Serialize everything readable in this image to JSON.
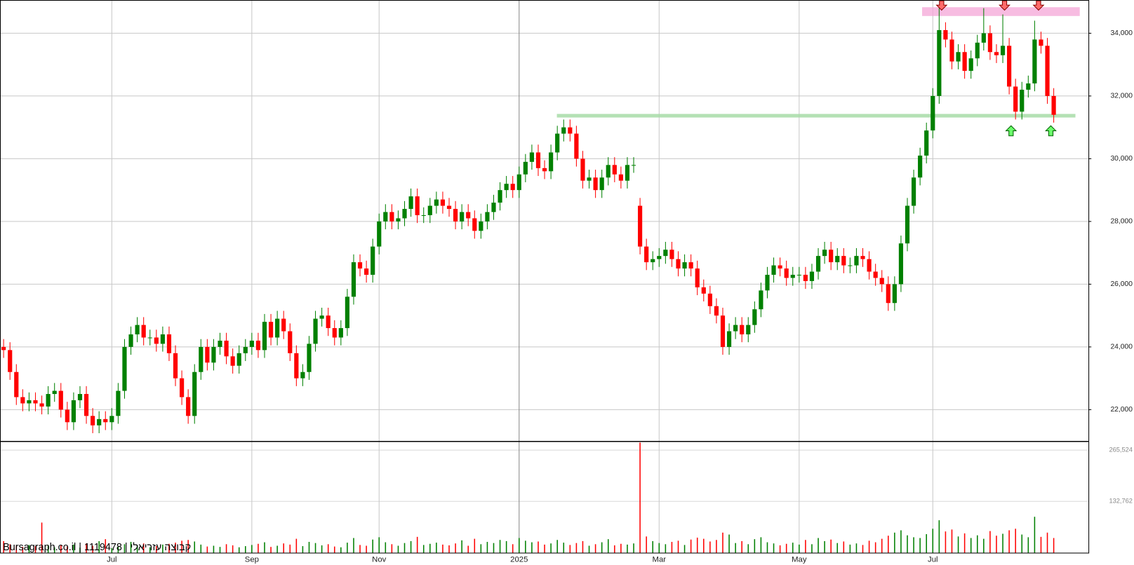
{
  "chart_data": {
    "type": "candlestick",
    "categories": [
      null,
      null,
      null,
      null,
      null,
      null,
      null,
      null,
      null,
      null,
      null,
      null,
      null,
      null,
      null,
      null,
      null,
      "Jul",
      null,
      null,
      null,
      null,
      null,
      null,
      null,
      null,
      null,
      null,
      null,
      null,
      null,
      null,
      null,
      null,
      null,
      null,
      null,
      null,
      null,
      "Sep",
      null,
      null,
      null,
      null,
      null,
      null,
      null,
      null,
      null,
      null,
      null,
      null,
      null,
      null,
      null,
      null,
      null,
      null,
      null,
      "Nov",
      null,
      null,
      null,
      null,
      null,
      null,
      null,
      null,
      null,
      null,
      null,
      null,
      null,
      null,
      null,
      null,
      null,
      null,
      null,
      null,
      null,
      "2025",
      null,
      null,
      null,
      null,
      null,
      null,
      null,
      null,
      null,
      null,
      null,
      null,
      null,
      null,
      null,
      null,
      null,
      null,
      null,
      null,
      null,
      "Mar",
      null,
      null,
      null,
      null,
      null,
      null,
      null,
      null,
      null,
      null,
      null,
      null,
      null,
      null,
      null,
      null,
      null,
      null,
      null,
      null,
      null,
      "May",
      null,
      null,
      null,
      null,
      null,
      null,
      null,
      null,
      null,
      null,
      null,
      null,
      null,
      null,
      null,
      null,
      null,
      null,
      null,
      null,
      "Jul",
      null,
      null,
      null,
      null,
      null,
      null,
      null,
      null,
      null,
      null,
      null,
      null,
      null,
      null,
      null,
      null,
      null,
      null,
      null
    ],
    "open": [
      24000,
      23900,
      23200,
      22400,
      22200,
      22300,
      22200,
      22100,
      22500,
      22600,
      22000,
      21600,
      22300,
      22500,
      21800,
      21500,
      21700,
      21600,
      21800,
      22600,
      24000,
      24400,
      24700,
      24300,
      24300,
      24100,
      24400,
      23800,
      23000,
      22400,
      21800,
      23200,
      24000,
      23500,
      24000,
      24200,
      23700,
      23400,
      23800,
      24000,
      24200,
      23900,
      24800,
      24300,
      24900,
      24500,
      23800,
      23000,
      23200,
      24100,
      24900,
      25000,
      24600,
      24300,
      24600,
      25600,
      26700,
      26500,
      26300,
      27200,
      28000,
      28300,
      28000,
      28100,
      28400,
      28800,
      28200,
      28200,
      28500,
      28700,
      28500,
      28400,
      28000,
      28300,
      28100,
      27700,
      28000,
      28300,
      28600,
      29000,
      29200,
      29000,
      29500,
      29900,
      30200,
      29700,
      29600,
      30200,
      30800,
      31000,
      30800,
      30000,
      29300,
      29400,
      29000,
      29400,
      29800,
      29500,
      29300,
      29800,
      28500,
      27200,
      26700,
      26800,
      26900,
      27100,
      26800,
      26500,
      26700,
      26500,
      25900,
      25700,
      25300,
      25000,
      24000,
      24500,
      24700,
      24400,
      24700,
      25200,
      25800,
      26300,
      26600,
      26500,
      26200,
      26300,
      26300,
      26100,
      26400,
      26900,
      27100,
      26700,
      26900,
      26600,
      26600,
      26900,
      26800,
      26400,
      26200,
      26000,
      25400,
      26000,
      27300,
      28500,
      29400,
      30100,
      30900,
      32000,
      34100,
      33800,
      33100,
      33400,
      32800,
      33200,
      33700,
      34000,
      33400,
      33300,
      33600,
      32300,
      31500,
      32200,
      32400,
      33800,
      33600,
      32000
    ],
    "high": [
      24250,
      24150,
      23450,
      22650,
      22550,
      22550,
      22450,
      22750,
      22850,
      22850,
      22250,
      22550,
      22750,
      22750,
      22050,
      21950,
      21950,
      22050,
      22850,
      24250,
      24650,
      24950,
      24950,
      24550,
      24550,
      24650,
      24650,
      24050,
      23250,
      22650,
      23450,
      24250,
      24250,
      24250,
      24450,
      24450,
      23950,
      24050,
      24250,
      24450,
      24450,
      25050,
      25050,
      25150,
      25150,
      24750,
      24050,
      23450,
      24350,
      25150,
      25250,
      25250,
      24850,
      24850,
      25850,
      26950,
      26950,
      26750,
      27450,
      28250,
      28550,
      28550,
      28350,
      28650,
      29050,
      29050,
      28450,
      28750,
      28950,
      28950,
      28750,
      28650,
      28550,
      28550,
      28350,
      28250,
      28550,
      28850,
      29250,
      29450,
      29450,
      29750,
      30150,
      30450,
      30450,
      29950,
      30450,
      31050,
      31250,
      31250,
      31050,
      30250,
      29650,
      29650,
      29650,
      30050,
      30050,
      29750,
      30050,
      30050,
      28750,
      27450,
      27050,
      27150,
      27350,
      27350,
      27050,
      26950,
      26950,
      26750,
      26150,
      25950,
      25550,
      25250,
      24750,
      24950,
      24950,
      24950,
      25450,
      26050,
      26550,
      26850,
      26850,
      26750,
      26550,
      26550,
      26550,
      26650,
      27150,
      27350,
      27350,
      27150,
      27150,
      26850,
      27150,
      27150,
      27050,
      26650,
      26450,
      26250,
      26250,
      27550,
      28750,
      29650,
      30350,
      31150,
      32250,
      34800,
      34350,
      34050,
      33650,
      33650,
      33450,
      33950,
      34800,
      34250,
      33650,
      34600,
      33850,
      32550,
      32450,
      32650,
      34400,
      34050,
      33850,
      32250
    ],
    "low": [
      23650,
      22950,
      22150,
      21950,
      21950,
      21950,
      21850,
      21850,
      22250,
      21750,
      21350,
      21350,
      22050,
      21550,
      21250,
      21250,
      21350,
      21350,
      21550,
      22350,
      23750,
      24150,
      24050,
      24050,
      23850,
      23850,
      23550,
      22750,
      22150,
      21550,
      21550,
      22950,
      23250,
      23250,
      23750,
      23450,
      23150,
      23150,
      23550,
      23750,
      23650,
      23650,
      24050,
      24050,
      24250,
      23550,
      22750,
      22750,
      22950,
      23850,
      24650,
      24350,
      24050,
      24050,
      24350,
      25350,
      26250,
      26050,
      26050,
      26950,
      27750,
      27750,
      27750,
      27850,
      28150,
      27950,
      27950,
      27950,
      28250,
      28250,
      28150,
      27750,
      27750,
      27850,
      27450,
      27450,
      27750,
      28050,
      28350,
      28750,
      28750,
      28750,
      29250,
      29650,
      29450,
      29350,
      29350,
      29950,
      30550,
      30550,
      29750,
      29050,
      29050,
      28750,
      28750,
      29150,
      29250,
      29050,
      29050,
      29550,
      26950,
      26450,
      26450,
      26550,
      26650,
      26550,
      26250,
      26250,
      26250,
      25650,
      25450,
      25050,
      24750,
      23750,
      23750,
      24250,
      24150,
      24150,
      24450,
      24950,
      25550,
      26050,
      26250,
      25950,
      25950,
      26050,
      25850,
      25850,
      26150,
      26650,
      26450,
      26450,
      26350,
      26350,
      26350,
      26550,
      26150,
      25950,
      25750,
      25150,
      25150,
      25750,
      27050,
      28250,
      29150,
      29850,
      30650,
      31750,
      33550,
      32850,
      32850,
      32550,
      32550,
      32950,
      33450,
      33150,
      33050,
      33050,
      32050,
      31250,
      31250,
      31950,
      32150,
      33350,
      31750,
      31150
    ],
    "close": [
      23900,
      23200,
      22400,
      22200,
      22300,
      22200,
      22100,
      22500,
      22600,
      22000,
      21600,
      22300,
      22500,
      21800,
      21500,
      21700,
      21600,
      21800,
      22600,
      24000,
      24400,
      24700,
      24300,
      24300,
      24100,
      24400,
      23800,
      23000,
      22400,
      21800,
      23200,
      24000,
      23500,
      24000,
      24200,
      23700,
      23400,
      23800,
      24000,
      24200,
      23900,
      24800,
      24300,
      24900,
      24500,
      23800,
      23000,
      23200,
      24100,
      24900,
      25000,
      24600,
      24300,
      24600,
      25600,
      26700,
      26500,
      26300,
      27200,
      28000,
      28300,
      28000,
      28100,
      28400,
      28800,
      28200,
      28200,
      28500,
      28700,
      28500,
      28400,
      28000,
      28300,
      28100,
      27700,
      28000,
      28300,
      28600,
      29000,
      29200,
      29000,
      29500,
      29900,
      30200,
      29700,
      29600,
      30200,
      30800,
      31000,
      30800,
      30000,
      29300,
      29400,
      29000,
      29400,
      29800,
      29500,
      29300,
      29800,
      29800,
      27200,
      26700,
      26800,
      26900,
      27100,
      26800,
      26500,
      26700,
      26500,
      25900,
      25700,
      25300,
      25000,
      24000,
      24500,
      24700,
      24400,
      24700,
      25200,
      25800,
      26300,
      26600,
      26500,
      26200,
      26300,
      26300,
      26100,
      26400,
      26900,
      27100,
      26700,
      26900,
      26600,
      26600,
      26900,
      26800,
      26400,
      26200,
      26000,
      25400,
      26000,
      27300,
      28500,
      29400,
      30100,
      30900,
      32000,
      34100,
      33800,
      33100,
      33400,
      32800,
      33200,
      33700,
      34000,
      33400,
      33300,
      33600,
      32300,
      31500,
      32200,
      32400,
      33800,
      33600,
      32000,
      31400
    ],
    "up_color": "#008000",
    "down_color": "#ff0000",
    "ylim": [
      21010,
      35059
    ],
    "yticks": [
      {
        "value": 22000,
        "label": "22,000"
      },
      {
        "value": 24000,
        "label": "24,000"
      },
      {
        "value": 26000,
        "label": "26,000"
      },
      {
        "value": 28000,
        "label": "28,000"
      },
      {
        "value": 30000,
        "label": "30,000"
      },
      {
        "value": 32000,
        "label": "32,000"
      },
      {
        "value": 34000,
        "label": "34,000"
      }
    ],
    "grid": true,
    "volume": {
      "values": [
        30000,
        22000,
        18000,
        15000,
        20000,
        17000,
        78000,
        20000,
        14000,
        19000,
        16000,
        21000,
        13000,
        24000,
        18000,
        30000,
        35000,
        12000,
        15000,
        22000,
        28000,
        19000,
        24000,
        14000,
        17000,
        21000,
        23000,
        26000,
        31000,
        33000,
        29000,
        21000,
        16000,
        18000,
        15000,
        22000,
        19000,
        14000,
        17000,
        20000,
        23000,
        27000,
        15000,
        18000,
        24000,
        21000,
        36000,
        17000,
        28000,
        25000,
        19000,
        22000,
        16000,
        14000,
        26000,
        38000,
        20000,
        18000,
        34000,
        40000,
        27000,
        22000,
        18000,
        25000,
        30000,
        41000,
        20000,
        23000,
        26000,
        21000,
        19000,
        24000,
        32000,
        18000,
        36000,
        22000,
        28000,
        25000,
        33000,
        30000,
        22000,
        38000,
        31000,
        27000,
        29000,
        21000,
        24000,
        33000,
        26000,
        20000,
        25000,
        30000,
        18000,
        22000,
        27000,
        35000,
        19000,
        23000,
        21000,
        24000,
        285000,
        42000,
        30000,
        25000,
        22000,
        28000,
        31000,
        20000,
        34000,
        39000,
        36000,
        29000,
        33000,
        52000,
        47000,
        25000,
        30000,
        22000,
        35000,
        40000,
        27000,
        24000,
        19000,
        23000,
        26000,
        21000,
        33000,
        22000,
        38000,
        30000,
        34000,
        25000,
        29000,
        21000,
        24000,
        20000,
        31000,
        27000,
        36000,
        44000,
        52000,
        58000,
        45000,
        40000,
        38000,
        48000,
        62000,
        84000,
        55000,
        60000,
        42000,
        50000,
        38000,
        45000,
        36000,
        56000,
        44000,
        49000,
        58000,
        62000,
        47000,
        40000,
        93000,
        41000,
        52000,
        38000
      ],
      "ylim": [
        0,
        286090
      ],
      "yticks": [
        {
          "value": 132762,
          "label": "132,762"
        },
        {
          "value": 265524,
          "label": "265,524"
        }
      ]
    },
    "resistance_zone": [
      34550,
      34830
    ],
    "support_level": 31370,
    "footer": "Bursagraph.co.il | 1119478 | קבוצה עזריאלי"
  }
}
